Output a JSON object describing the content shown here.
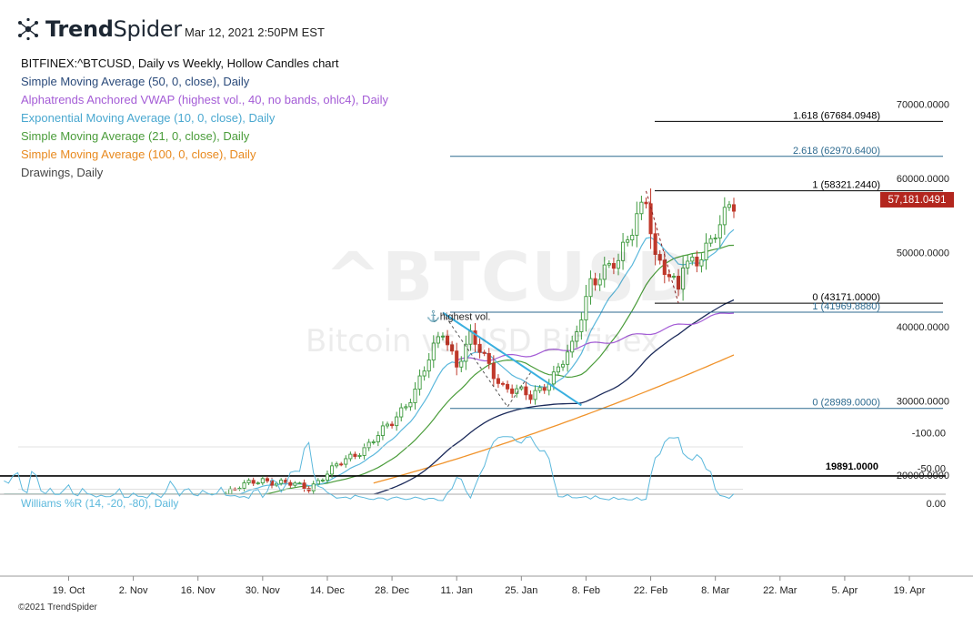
{
  "header": {
    "brand_bold": "Trend",
    "brand_light": "Spider",
    "timestamp": "Mar 12, 2021 2:50PM EST",
    "icon": "trendspider-logo-icon"
  },
  "legend": {
    "symbol_line": "BITFINEX:^BTCUSD, Daily vs Weekly, Hollow Candles chart",
    "sma50": "Simple Moving Average (50, 0, close), Daily",
    "vwap": "Alphatrends Anchored VWAP (highest vol., 40, no bands, ohlc4), Daily",
    "ema10": "Exponential Moving Average (10, 0, close), Daily",
    "sma21": "Simple Moving Average (21, 0, close), Daily",
    "sma100": "Simple Moving Average (100, 0, close), Daily",
    "drawings": "Drawings, Daily"
  },
  "watermark": {
    "ticker": "^BTCUSD",
    "name": "Bitcoin vs USD Bitfinex"
  },
  "footer": "©2021 TrendSpider",
  "colors": {
    "sma50": "#1b2a5a",
    "vwap": "#a45cd6",
    "ema10": "#5bb8dc",
    "sma21": "#4a9c3a",
    "sma100": "#f0932b",
    "up": "#3e9a3e",
    "down": "#c0392b",
    "price_box": "#b3261e",
    "fib_blue": "#2d6a8f",
    "williams": "#5bb8dc",
    "text_legend_sma50": "#2a4a7a",
    "text_legend_vwap": "#a45cd6",
    "text_legend_ema": "#4aa8d0",
    "text_legend_sma21": "#4a9c3a",
    "text_legend_sma100": "#e8891e",
    "text_legend_draw": "#444444"
  },
  "chart_data": {
    "type": "candlestick",
    "title": "BITFINEX:^BTCUSD, Daily vs Weekly, Hollow Candles chart",
    "y_axis": {
      "ticks": [
        20000,
        30000,
        40000,
        50000,
        60000,
        70000
      ],
      "tick_labels": [
        "20000.0000",
        "30000.0000",
        "40000.0000",
        "50000.0000",
        "60000.0000",
        "70000.0000"
      ],
      "range": [
        17000,
        73000
      ]
    },
    "x_axis": {
      "ticks": [
        "19. Oct",
        "2. Nov",
        "16. Nov",
        "30. Nov",
        "14. Dec",
        "28. Dec",
        "11. Jan",
        "25. Jan",
        "8. Feb",
        "22. Feb",
        "8. Mar",
        "22. Mar",
        "5. Apr",
        "19. Apr"
      ],
      "start_date": "2020-10-05",
      "end_date": "2021-04-26"
    },
    "last_price": "57,181.0491",
    "last_price_value": 57181.0491,
    "horizontal_levels": [
      {
        "label": "19891.0000",
        "value": 19891,
        "color": "#000000"
      }
    ],
    "fibonacci": [
      {
        "label": "1.618 (67684.0948)",
        "value": 67684.0948,
        "color": "#000000"
      },
      {
        "label": "2.618 (62970.6400)",
        "value": 62970.64,
        "color": "#2d6a8f"
      },
      {
        "label": "1 (58321.2440)",
        "value": 58321.244,
        "color": "#000000"
      },
      {
        "label": "0 (43171.0000)",
        "value": 43171,
        "color": "#000000"
      },
      {
        "label": "1 (41969.8880)",
        "value": 41969.888,
        "color": "#2d6a8f"
      },
      {
        "label": "0 (28989.0000)",
        "value": 28989,
        "color": "#2d6a8f"
      }
    ],
    "annotation": "highest vol.",
    "candles_sample": [
      {
        "date": "2020-11-30",
        "o": 18200,
        "h": 19850,
        "l": 18100,
        "c": 19700
      },
      {
        "date": "2020-12-17",
        "o": 21300,
        "h": 23700,
        "l": 21200,
        "c": 22800
      },
      {
        "date": "2021-01-03",
        "o": 32200,
        "h": 34800,
        "l": 32000,
        "c": 33000
      },
      {
        "date": "2021-01-08",
        "o": 39500,
        "h": 41950,
        "l": 36500,
        "c": 40600
      },
      {
        "date": "2021-01-22",
        "o": 30800,
        "h": 33800,
        "l": 28850,
        "c": 33000
      },
      {
        "date": "2021-02-08",
        "o": 38800,
        "h": 46700,
        "l": 38000,
        "c": 46400
      },
      {
        "date": "2021-02-21",
        "o": 55900,
        "h": 58350,
        "l": 55500,
        "c": 57500
      },
      {
        "date": "2021-02-28",
        "o": 46200,
        "h": 46900,
        "l": 43000,
        "c": 45200
      },
      {
        "date": "2021-03-12",
        "o": 57500,
        "h": 58000,
        "l": 55000,
        "c": 57181
      }
    ],
    "lower_panel": {
      "name": "Williams %R (14, -20, -80), Daily",
      "ticks": [
        0,
        -50,
        -100
      ],
      "tick_labels": [
        "0.00",
        "-50.00",
        "-100.00"
      ],
      "band": [
        -20,
        -80
      ],
      "range": [
        -100,
        0
      ]
    }
  }
}
